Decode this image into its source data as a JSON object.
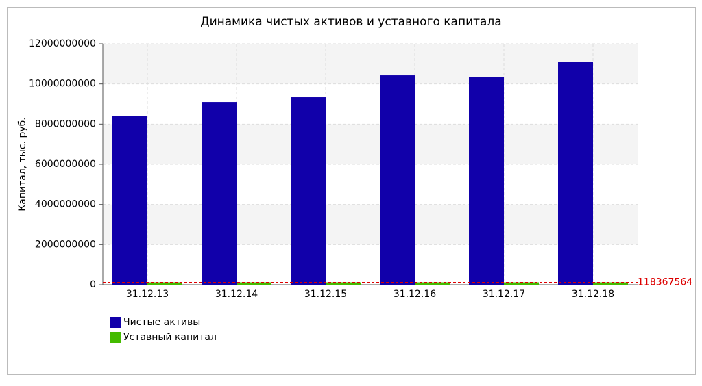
{
  "chart_data": {
    "type": "bar",
    "title": "Динамика чистых активов и уставного капитала",
    "y_label": "Капитал, тыс. руб.",
    "categories": [
      "31.12.13",
      "31.12.14",
      "31.12.15",
      "31.12.16",
      "31.12.17",
      "31.12.18"
    ],
    "series": [
      {
        "name": "Чистые активы",
        "color": "#1100aa",
        "values": [
          8390000000,
          9100000000,
          9340000000,
          10430000000,
          10330000000,
          11080000000
        ]
      },
      {
        "name": "Уставный капитал",
        "color": "#44bb00",
        "values": [
          118367564,
          118367564,
          118367564,
          118367564,
          118367564,
          118367564
        ]
      }
    ],
    "marker_line": {
      "value": 118367564,
      "color": "#dd0000"
    },
    "ylim": [
      0,
      12000000000
    ],
    "yticks": [
      0,
      2000000000,
      4000000000,
      6000000000,
      8000000000,
      10000000000,
      12000000000
    ],
    "grid": true
  }
}
